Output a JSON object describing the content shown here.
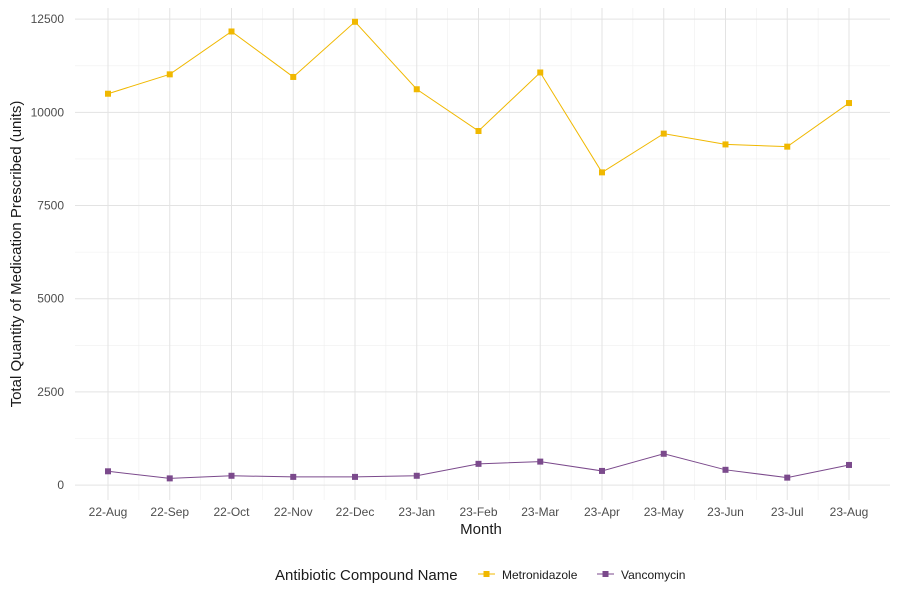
{
  "chart_data": {
    "type": "line",
    "categories": [
      "22-Aug",
      "22-Sep",
      "22-Oct",
      "22-Nov",
      "22-Dec",
      "23-Jan",
      "23-Feb",
      "23-Mar",
      "23-Apr",
      "23-May",
      "23-Jun",
      "23-Jul",
      "23-Aug"
    ],
    "series": [
      {
        "name": "Metronidazole",
        "color": "#f0b800",
        "values": [
          10500,
          11020,
          12170,
          10950,
          12430,
          10620,
          9500,
          11070,
          8390,
          9430,
          9140,
          9080,
          10250
        ]
      },
      {
        "name": "Vancomycin",
        "color": "#7b4a8c",
        "values": [
          370,
          180,
          250,
          220,
          220,
          250,
          570,
          630,
          380,
          840,
          410,
          200,
          540
        ]
      }
    ],
    "xlabel": "Month",
    "ylabel": "Total Quantity of Medication Prescribed (units)",
    "ylim": [
      -400,
      12800
    ],
    "yticks": [
      0,
      2500,
      5000,
      7500,
      10000,
      12500
    ],
    "ytick_labels": [
      "0",
      "2500",
      "5000",
      "7500",
      "10000",
      "12500"
    ],
    "grid": true,
    "marker": "square",
    "legend": {
      "title": "Antibiotic Compound Name",
      "position": "bottom"
    }
  }
}
